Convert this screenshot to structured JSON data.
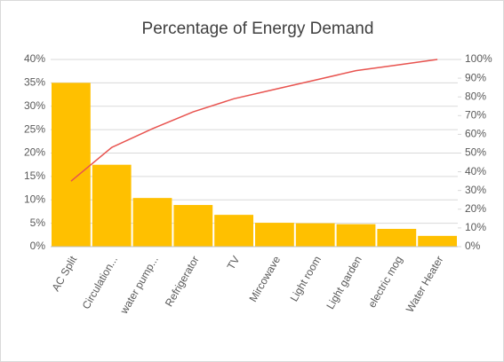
{
  "chart_data": {
    "type": "pareto",
    "title": "Percentage of Energy Demand",
    "categories": [
      "AC Split",
      "Circulation...",
      "water pump...",
      "Refrigerator",
      "TV",
      "Mircowave",
      "Light room",
      "Light garden",
      "electric mog",
      "Water Heater"
    ],
    "series": [
      {
        "type": "bar",
        "color": "#ffc000",
        "values": [
          35,
          17.5,
          10.4,
          8.9,
          6.8,
          5.1,
          5,
          4.8,
          3.8,
          2.3
        ]
      },
      {
        "type": "line",
        "color": "#e8534f",
        "axis": "y2",
        "values": [
          35,
          53,
          63,
          72,
          79,
          84,
          89,
          94,
          97,
          100
        ]
      }
    ],
    "ylim": [
      0,
      40
    ],
    "yticks": [
      {
        "value": 0,
        "label": "0%"
      },
      {
        "value": 5,
        "label": "5%"
      },
      {
        "value": 10,
        "label": "10%"
      },
      {
        "value": 15,
        "label": "15%"
      },
      {
        "value": 20,
        "label": "20%"
      },
      {
        "value": 25,
        "label": "25%"
      },
      {
        "value": 30,
        "label": "30%"
      },
      {
        "value": 35,
        "label": "35%"
      },
      {
        "value": 40,
        "label": "40%"
      }
    ],
    "y2lim": [
      0,
      100
    ],
    "y2ticks": [
      {
        "value": 0,
        "label": "0%"
      },
      {
        "value": 10,
        "label": "10%"
      },
      {
        "value": 20,
        "label": "20%"
      },
      {
        "value": 30,
        "label": "30%"
      },
      {
        "value": 40,
        "label": "40%"
      },
      {
        "value": 50,
        "label": "50%"
      },
      {
        "value": 60,
        "label": "60%"
      },
      {
        "value": 70,
        "label": "70%"
      },
      {
        "value": 80,
        "label": "80%"
      },
      {
        "value": 90,
        "label": "90%"
      },
      {
        "value": 100,
        "label": "100%"
      }
    ],
    "grid": true
  }
}
